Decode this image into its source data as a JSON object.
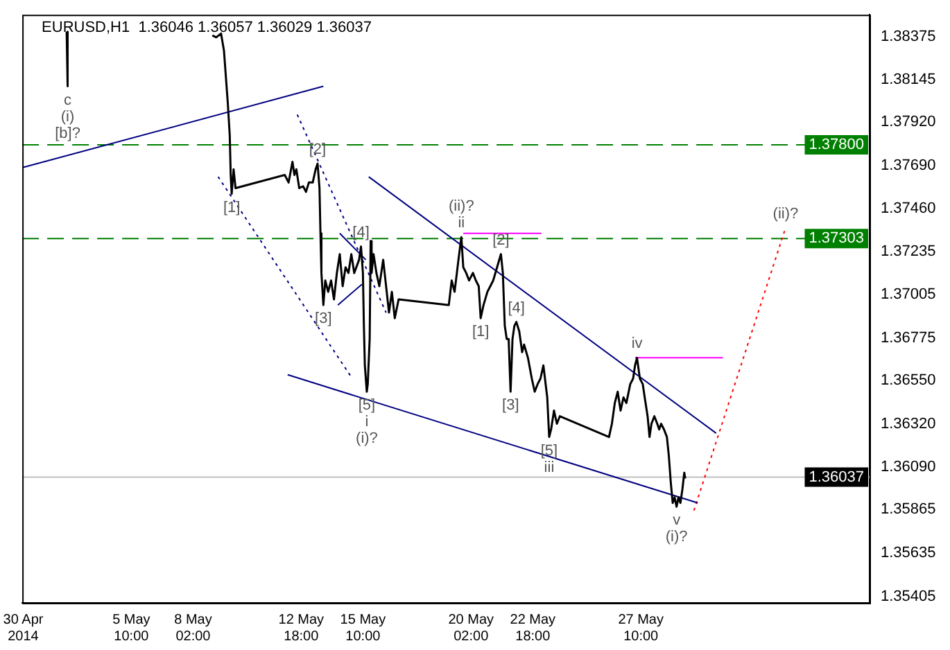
{
  "chart_data": {
    "type": "line",
    "title": "EURUSD,H1  1.36046 1.36057 1.36029 1.36037",
    "marker": "none",
    "legend": false,
    "grid": false,
    "xlim": [
      "2014-04-30T17:00",
      "2014-06-06T07:00"
    ],
    "xticks": [
      {
        "value": "2014-04-30T18:00",
        "label": "30 Apr 2014"
      },
      {
        "value": "2014-05-05T10:00",
        "label": "5 May 10:00"
      },
      {
        "value": "2014-05-08T02:00",
        "label": "8 May 02:00"
      },
      {
        "value": "2014-05-12T18:00",
        "label": "12 May 18:00"
      },
      {
        "value": "2014-05-15T10:00",
        "label": "15 May 10:00"
      },
      {
        "value": "2014-05-20T02:00",
        "label": "20 May 02:00"
      },
      {
        "value": "2014-05-22T18:00",
        "label": "22 May 18:00"
      },
      {
        "value": "2014-05-27T10:00",
        "label": "27 May 10:00"
      }
    ],
    "ylim": [
      1.3537,
      1.3849
    ],
    "yticks": [
      {
        "value": 1.38375,
        "label": "1.38375"
      },
      {
        "value": 1.38145,
        "label": "1.38145"
      },
      {
        "value": 1.3792,
        "label": "1.37920"
      },
      {
        "value": 1.3769,
        "label": "1.37690"
      },
      {
        "value": 1.3746,
        "label": "1.37460"
      },
      {
        "value": 1.37235,
        "label": "1.37235"
      },
      {
        "value": 1.37005,
        "label": "1.37005"
      },
      {
        "value": 1.36775,
        "label": "1.36775"
      },
      {
        "value": 1.3655,
        "label": "1.36550"
      },
      {
        "value": 1.3632,
        "label": "1.36320"
      },
      {
        "value": 1.3609,
        "label": "1.36090"
      },
      {
        "value": 1.35865,
        "label": "1.35865"
      },
      {
        "value": 1.35635,
        "label": "1.35635"
      },
      {
        "value": 1.35405,
        "label": "1.35405"
      }
    ],
    "series": [
      {
        "color": "#000000",
        "line_style": "solid",
        "x": [
          "2014-05-02T15:00",
          "2014-05-02T16:00",
          "2014-05-02T17:00",
          "2014-05-08T22:00",
          "2014-05-09T02:00",
          "2014-05-09T07:00",
          "2014-05-09T10:00",
          "2014-05-09T12:00",
          "2014-05-09T14:00",
          "2014-05-09T16:00",
          "2014-05-09T17:00",
          "2014-05-09T18:00",
          "2014-05-09T20:00",
          "2014-05-09T22:00",
          "2014-05-12T01:00",
          "2014-05-12T05:00",
          "2014-05-12T09:00",
          "2014-05-12T11:00",
          "2014-05-12T13:00",
          "2014-05-12T16:00",
          "2014-05-12T20:00",
          "2014-05-12T23:00",
          "2014-05-13T02:00",
          "2014-05-13T06:00",
          "2014-05-13T09:00",
          "2014-05-13T11:00",
          "2014-05-13T13:00",
          "2014-05-13T14:00",
          "2014-05-13T15:00",
          "2014-05-13T17:00",
          "2014-05-13T19:00",
          "2014-05-13T22:00",
          "2014-05-14T01:00",
          "2014-05-14T04:00",
          "2014-05-14T07:00",
          "2014-05-14T10:00",
          "2014-05-14T13:00",
          "2014-05-14T16:00",
          "2014-05-14T19:00",
          "2014-05-14T22:00",
          "2014-05-15T01:00",
          "2014-05-15T06:00",
          "2014-05-15T08:00",
          "2014-05-15T10:00",
          "2014-05-15T11:00",
          "2014-05-15T12:00",
          "2014-05-15T14:00",
          "2014-05-15T15:00",
          "2014-05-15T17:00",
          "2014-05-15T18:00",
          "2014-05-15T19:00",
          "2014-05-15T21:00",
          "2014-05-16T00:00",
          "2014-05-16T03:00",
          "2014-05-16T07:00",
          "2014-05-16T10:00",
          "2014-05-16T13:00",
          "2014-05-16T16:00",
          "2014-05-16T19:00",
          "2014-05-16T23:00",
          "2014-05-19T03:00",
          "2014-05-19T06:00",
          "2014-05-19T09:00",
          "2014-05-19T13:00",
          "2014-05-19T16:00",
          "2014-05-19T18:00",
          "2014-05-19T21:00",
          "2014-05-20T00:00",
          "2014-05-20T04:00",
          "2014-05-20T07:00",
          "2014-05-20T10:00",
          "2014-05-20T12:00",
          "2014-05-20T15:00",
          "2014-05-20T19:00",
          "2014-05-20T22:00",
          "2014-05-21T01:00",
          "2014-05-21T05:00",
          "2014-05-21T09:00",
          "2014-05-21T11:00",
          "2014-05-21T13:00",
          "2014-05-21T15:00",
          "2014-05-21T17:00",
          "2014-05-21T19:00",
          "2014-05-21T21:00",
          "2014-05-21T23:00",
          "2014-05-22T01:00",
          "2014-05-22T04:00",
          "2014-05-22T07:00",
          "2014-05-22T09:00",
          "2014-05-22T13:00",
          "2014-05-22T17:00",
          "2014-05-22T20:00",
          "2014-05-22T23:00",
          "2014-05-23T02:00",
          "2014-05-23T05:00",
          "2014-05-23T09:00",
          "2014-05-23T11:00",
          "2014-05-23T13:00",
          "2014-05-23T16:00",
          "2014-05-23T19:00",
          "2014-05-23T22:00",
          "2014-05-26T01:00",
          "2014-05-26T04:00",
          "2014-05-26T07:00",
          "2014-05-26T10:00",
          "2014-05-26T13:00",
          "2014-05-26T16:00",
          "2014-05-26T19:00",
          "2014-05-26T23:00",
          "2014-05-27T02:00",
          "2014-05-27T04:00",
          "2014-05-27T06:00",
          "2014-05-27T09:00",
          "2014-05-27T12:00",
          "2014-05-27T14:00",
          "2014-05-27T17:00",
          "2014-05-27T19:00",
          "2014-05-27T21:00",
          "2014-05-28T00:00",
          "2014-05-28T03:00",
          "2014-05-28T05:00",
          "2014-05-28T07:00",
          "2014-05-28T10:00",
          "2014-05-28T13:00",
          "2014-05-28T15:00",
          "2014-05-28T17:00",
          "2014-05-28T19:00",
          "2014-05-28T21:00",
          "2014-05-28T23:00",
          "2014-05-29T01:00",
          "2014-05-29T03:00",
          "2014-05-29T05:00",
          "2014-05-29T07:00",
          "2014-05-29T08:00"
        ],
        "values": [
          1.384,
          1.3811,
          null,
          1.3838,
          1.3837,
          1.3839,
          1.383,
          1.3816,
          1.3802,
          1.3785,
          1.3764,
          1.3754,
          1.3767,
          1.3757,
          1.3764,
          1.376,
          1.3771,
          1.3764,
          1.3767,
          1.3757,
          1.3758,
          1.3755,
          1.376,
          1.376,
          1.3767,
          1.377,
          1.3757,
          1.3733,
          1.3712,
          1.3695,
          1.3708,
          1.3702,
          1.3708,
          1.3698,
          1.3712,
          1.3722,
          1.3705,
          1.3715,
          1.3712,
          1.3722,
          1.3712,
          1.3719,
          1.3726,
          1.3712,
          1.3684,
          1.3663,
          1.3649,
          1.3653,
          1.3677,
          1.3729,
          1.3712,
          1.3722,
          1.3712,
          1.3705,
          1.3719,
          1.3705,
          1.3691,
          1.3702,
          1.3688,
          1.3698,
          1.3695,
          1.3708,
          1.3702,
          1.3719,
          1.3731,
          1.3715,
          1.3712,
          1.3708,
          1.3712,
          1.3708,
          1.3705,
          1.3688,
          1.3695,
          1.3702,
          1.3705,
          1.3708,
          1.3715,
          1.3722,
          1.3712,
          1.3684,
          1.3677,
          1.3677,
          1.3649,
          1.3677,
          1.3684,
          1.3686,
          1.3681,
          1.367,
          1.3674,
          1.3667,
          1.3656,
          1.3649,
          1.3653,
          1.3656,
          1.3663,
          1.3646,
          1.3625,
          1.3629,
          1.3639,
          1.3632,
          1.3636,
          1.3625,
          1.3632,
          1.3643,
          1.3649,
          1.3639,
          1.3646,
          1.3643,
          1.3653,
          1.3656,
          1.3663,
          1.3667,
          1.3656,
          1.3653,
          1.3646,
          1.3636,
          1.3625,
          1.3632,
          1.3636,
          1.3632,
          1.3629,
          1.3632,
          1.3629,
          1.3625,
          1.3615,
          1.3601,
          1.359,
          1.3593,
          1.3588,
          1.3593,
          1.359,
          1.3597,
          1.3606,
          1.3603
        ]
      },
      {
        "color": "#000080",
        "line_style": "solid",
        "x": [
          "2014-04-30T18:00",
          "2014-05-13T17:00"
        ],
        "values": [
          1.3768,
          1.3811
        ]
      },
      {
        "color": "#000080",
        "line_style": "solid",
        "x": [
          "2014-05-12T04:00",
          "2014-05-29T21:00"
        ],
        "values": [
          1.3658,
          1.359
        ]
      },
      {
        "color": "#000080",
        "line_style": "solid",
        "x": [
          "2014-05-15T16:00",
          "2014-05-30T16:00"
        ],
        "values": [
          1.3763,
          1.3627
        ]
      },
      {
        "color": "#000080",
        "line_style": "dotted",
        "x": [
          "2014-05-09T04:00",
          "2014-05-14T23:00"
        ],
        "values": [
          1.3763,
          1.3656
        ]
      },
      {
        "color": "#000080",
        "line_style": "dotted",
        "x": [
          "2014-05-12T14:00",
          "2014-05-16T10:00"
        ],
        "values": [
          1.3796,
          1.3691
        ]
      },
      {
        "color": "#000080",
        "line_style": "solid",
        "x": [
          "2014-05-14T10:00",
          "2014-05-15T13:00"
        ],
        "values": [
          1.3733,
          1.3719
        ]
      },
      {
        "color": "#000080",
        "line_style": "solid",
        "x": [
          "2014-05-14T08:00",
          "2014-05-15T09:00"
        ],
        "values": [
          1.3695,
          1.3706
        ]
      },
      {
        "color": "#ff00ff",
        "line_style": "solid",
        "x": [
          "2014-05-19T18:00",
          "2014-05-23T03:00"
        ],
        "values": [
          1.3733,
          1.3733
        ]
      },
      {
        "color": "#ff00ff",
        "line_style": "solid",
        "x": [
          "2014-05-27T04:00",
          "2014-05-30T23:00"
        ],
        "values": [
          1.3667,
          1.3667
        ]
      },
      {
        "color": "#ff0000",
        "line_style": "dotted",
        "x": [
          "2014-05-29T17:00",
          "2014-06-02T16:00"
        ],
        "values": [
          1.3586,
          1.3736
        ]
      }
    ],
    "ref_lines": [
      {
        "axis": "y",
        "value": 1.378,
        "label": "1.37800",
        "color": "#008000",
        "line_style": "dashed"
      },
      {
        "axis": "y",
        "value": 1.37303,
        "label": "1.37303",
        "color": "#008000",
        "line_style": "dashed"
      },
      {
        "axis": "y",
        "value": 1.36037,
        "label": "1.36037",
        "color": "#c0c0c0",
        "line_style": "solid"
      }
    ],
    "annotations": [
      {
        "text": "c",
        "x": "2014-05-02T16:00",
        "y": 1.3811
      },
      {
        "text": "(i)",
        "x": "2014-05-02T16:00",
        "y": 1.3811
      },
      {
        "text": "[b]?",
        "x": "2014-05-02T16:00",
        "y": 1.3811
      },
      {
        "text": "[1]",
        "x": "2014-05-09T18:00",
        "y": 1.3754
      },
      {
        "text": "[2]",
        "x": "2014-05-13T11:00",
        "y": 1.377
      },
      {
        "text": "[3]",
        "x": "2014-05-13T17:00",
        "y": 1.3695
      },
      {
        "text": "[4]",
        "x": "2014-05-15T08:00",
        "y": 1.3726
      },
      {
        "text": "[5]",
        "x": "2014-05-15T14:00",
        "y": 1.3649
      },
      {
        "text": "i",
        "x": "2014-05-15T14:00",
        "y": 1.3649
      },
      {
        "text": "(i)?",
        "x": "2014-05-15T14:00",
        "y": 1.3649
      },
      {
        "text": "ii",
        "x": "2014-05-19T16:00",
        "y": 1.3731
      },
      {
        "text": "(ii)?",
        "x": "2014-05-19T16:00",
        "y": 1.3731
      },
      {
        "text": "[1]",
        "x": "2014-05-20T12:00",
        "y": 1.3688
      },
      {
        "text": "[2]",
        "x": "2014-05-21T09:00",
        "y": 1.3722
      },
      {
        "text": "[3]",
        "x": "2014-05-21T19:00",
        "y": 1.3649
      },
      {
        "text": "[4]",
        "x": "2014-05-22T01:00",
        "y": 1.3686
      },
      {
        "text": "[5]",
        "x": "2014-05-23T11:00",
        "y": 1.3625
      },
      {
        "text": "iii",
        "x": "2014-05-23T11:00",
        "y": 1.3625
      },
      {
        "text": "iv",
        "x": "2014-05-27T06:00",
        "y": 1.3667
      },
      {
        "text": "v",
        "x": "2014-05-28T23:00",
        "y": 1.3588
      },
      {
        "text": "(i)?",
        "x": "2014-05-28T23:00",
        "y": 1.3588
      },
      {
        "text": "(ii)?",
        "x": "2014-06-02T16:00",
        "y": 1.3736
      }
    ]
  }
}
